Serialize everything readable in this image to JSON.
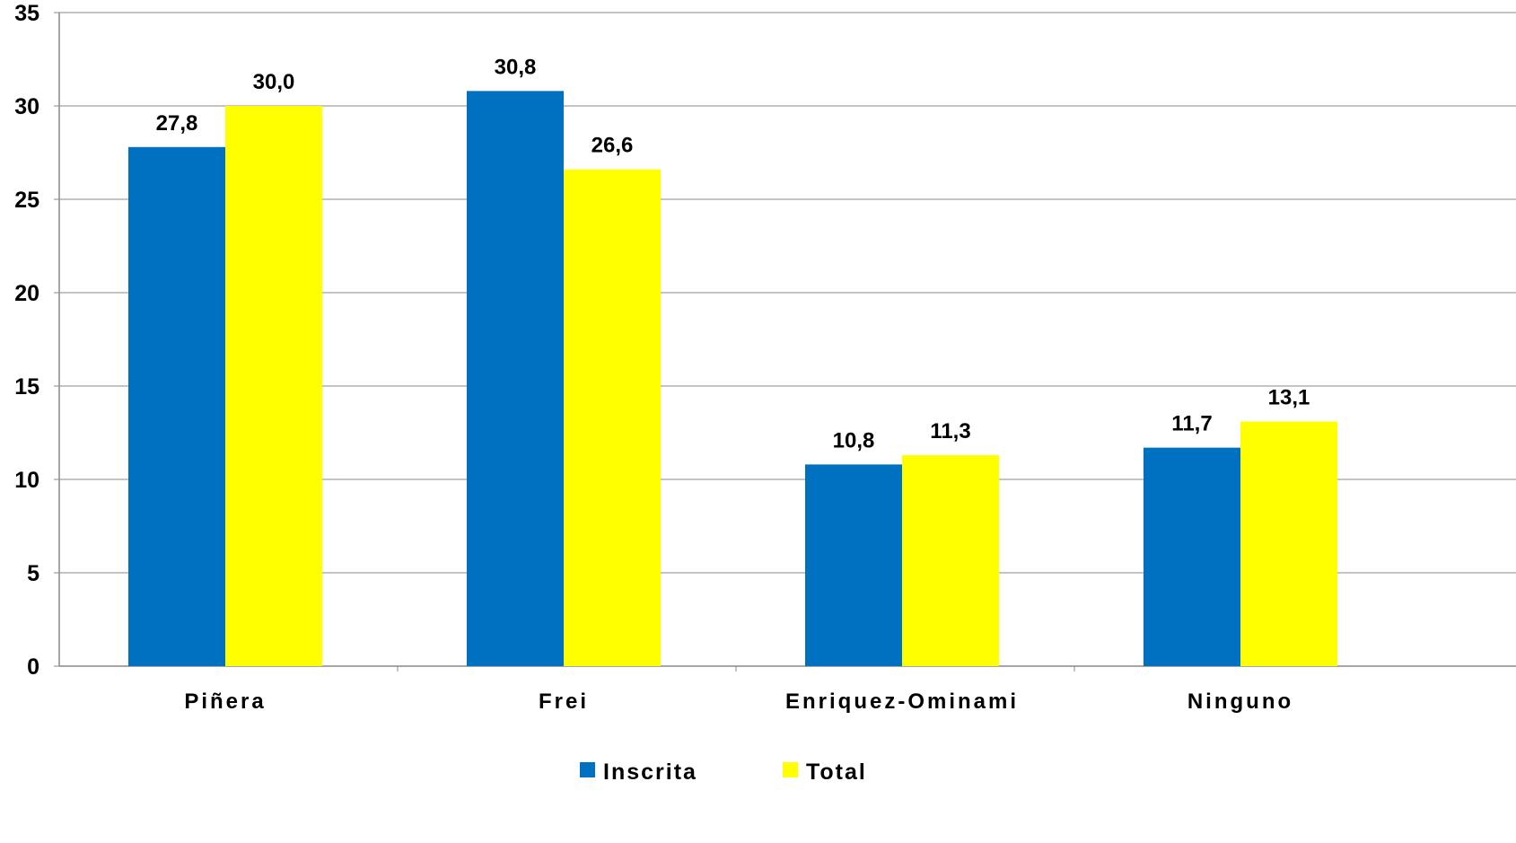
{
  "chart_data": {
    "type": "bar",
    "categories": [
      "Piñera",
      "Frei",
      "Enriquez-Ominami",
      "Ninguno"
    ],
    "series": [
      {
        "name": "Inscrita",
        "color": "#0070C0",
        "values": [
          27.8,
          30.8,
          10.8,
          11.7
        ],
        "labels": [
          "27,8",
          "30,8",
          "10,8",
          "11,7"
        ]
      },
      {
        "name": "Total",
        "color": "#FFFF00",
        "values": [
          30.0,
          26.6,
          11.3,
          13.1
        ],
        "labels": [
          "30,0",
          "26,6",
          "11,3",
          "13,1"
        ]
      }
    ],
    "ylim": [
      0,
      35
    ],
    "yticks": [
      0,
      5,
      10,
      15,
      20,
      25,
      30,
      35
    ],
    "grid": true,
    "gridColor": "#888888",
    "legend": "bottom-center",
    "title": "",
    "xlabel": "",
    "ylabel": ""
  }
}
